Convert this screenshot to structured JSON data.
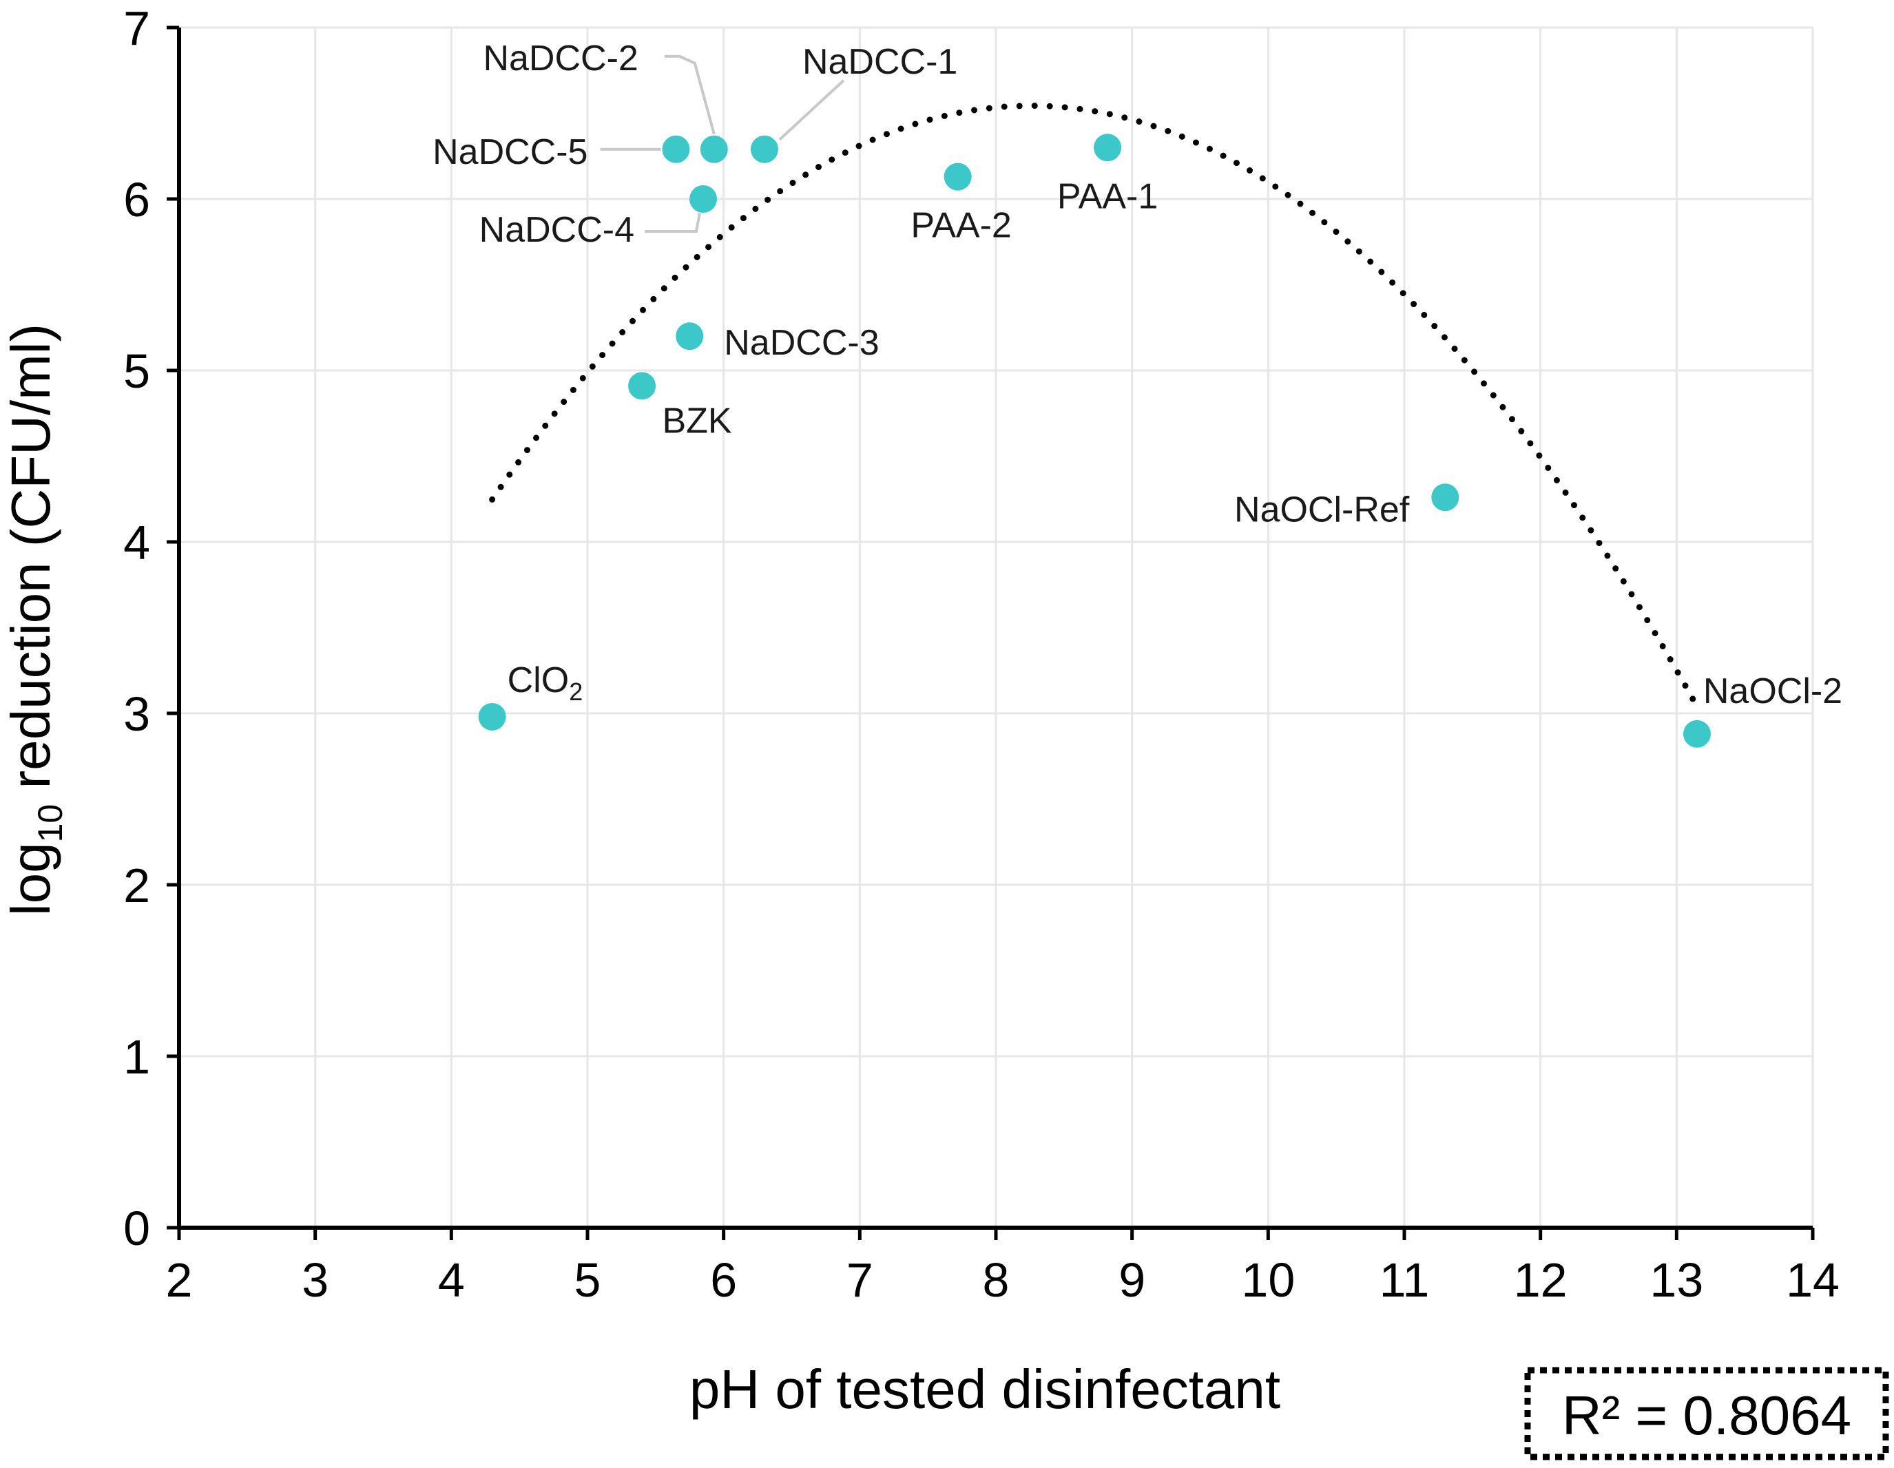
{
  "chart_data": {
    "type": "scatter",
    "xlabel": "pH of tested disinfectant",
    "ylabel_main": "log",
    "ylabel_sub": "10",
    "ylabel_rest": " reduction (CFU/ml)",
    "xlim": [
      2,
      14
    ],
    "ylim": [
      0,
      7
    ],
    "xticks": [
      2,
      3,
      4,
      5,
      6,
      7,
      8,
      9,
      10,
      11,
      12,
      13,
      14
    ],
    "yticks": [
      0,
      1,
      2,
      3,
      4,
      5,
      6,
      7
    ],
    "grid": true,
    "point_color": "#3cc8c8",
    "trendline": {
      "type": "polynomial-2",
      "style": "dotted",
      "color": "#000000",
      "x_range": [
        4.3,
        13.15
      ],
      "coefficients": [
        -3.45,
        2.42,
        -0.1465
      ]
    },
    "r_squared_label": "R² = 0.8064",
    "points": [
      {
        "label": "NaDCC-1",
        "x": 6.3,
        "y": 6.29
      },
      {
        "label": "NaDCC-2",
        "x": 5.93,
        "y": 6.29
      },
      {
        "label": "NaDCC-3",
        "x": 5.75,
        "y": 5.2
      },
      {
        "label": "NaDCC-4",
        "x": 5.85,
        "y": 6.0
      },
      {
        "label": "NaDCC-5",
        "x": 5.65,
        "y": 6.29
      },
      {
        "label": "PAA-1",
        "x": 8.82,
        "y": 6.3
      },
      {
        "label": "PAA-2",
        "x": 7.72,
        "y": 6.13
      },
      {
        "label": "BZK",
        "x": 5.4,
        "y": 4.91
      },
      {
        "label": "NaOCl-Ref",
        "x": 11.3,
        "y": 4.26
      },
      {
        "label": "NaOCl-2",
        "x": 13.15,
        "y": 2.88
      },
      {
        "label": "ClO",
        "label_sub": "2",
        "x": 4.3,
        "y": 2.98
      }
    ]
  }
}
